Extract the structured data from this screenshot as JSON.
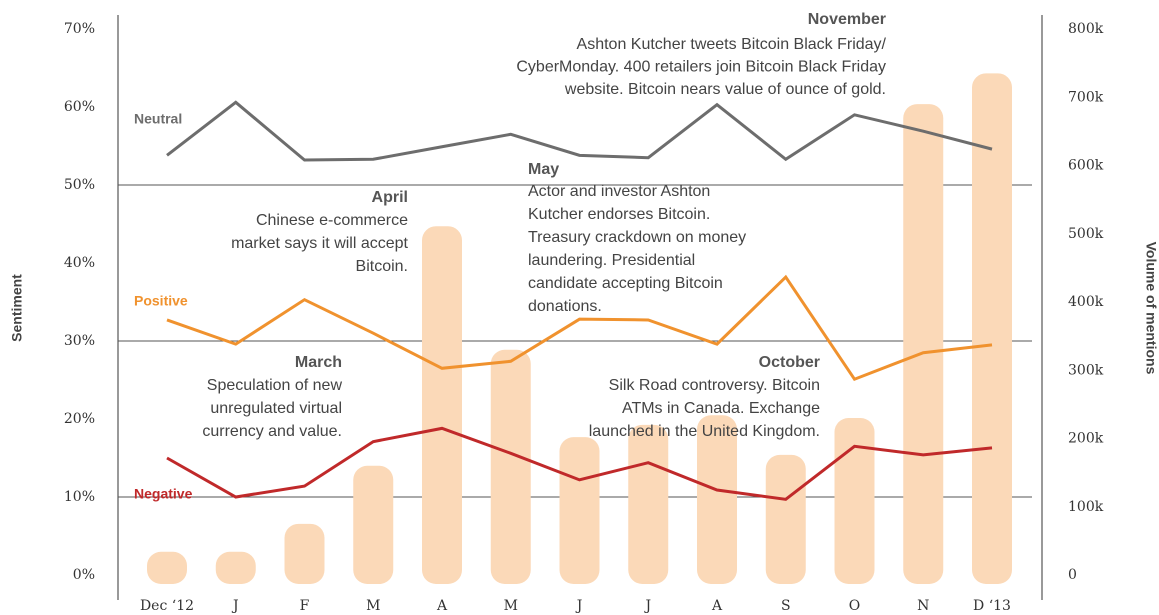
{
  "chart_data": {
    "type": "bar_line",
    "categories": [
      "Dec ‘12",
      "J",
      "F",
      "M",
      "A",
      "M",
      "J",
      "J",
      "A",
      "S",
      "O",
      "N",
      "D ‘13"
    ],
    "ylabel": "Sentiment",
    "y2label": "Volume of mentions",
    "ylim": [
      0,
      70
    ],
    "yticks": [
      {
        "value": 0,
        "label": "0%"
      },
      {
        "value": 10,
        "label": "10%"
      },
      {
        "value": 20,
        "label": "20%"
      },
      {
        "value": 30,
        "label": "30%"
      },
      {
        "value": 40,
        "label": "40%"
      },
      {
        "value": 50,
        "label": "50%"
      },
      {
        "value": 60,
        "label": "60%"
      },
      {
        "value": 70,
        "label": "70%"
      }
    ],
    "y2lim": [
      0,
      800000
    ],
    "y2ticks": [
      0,
      {
        "value": 100000,
        "label": "100k"
      },
      {
        "value": 200000,
        "label": "200k"
      },
      {
        "value": 300000,
        "label": "300k"
      },
      {
        "value": 400000,
        "label": "400k"
      },
      {
        "value": 500000,
        "label": "500k"
      },
      {
        "value": 600000,
        "label": "600k"
      },
      {
        "value": 700000,
        "label": "700k"
      },
      {
        "value": 800000,
        "label": "800k"
      }
    ],
    "grid_lines": [
      10,
      30,
      50
    ],
    "bars": {
      "color": "#fbd9b8",
      "axis": "y2",
      "values": [
        34000,
        34000,
        75000,
        160000,
        511000,
        330000,
        202000,
        220000,
        234000,
        176000,
        230000,
        690000,
        735000
      ]
    },
    "series": [
      {
        "name": "Neutral",
        "color": "#6d6d6d",
        "values": [
          53.8,
          60.6,
          53.2,
          53.3,
          54.9,
          56.5,
          53.8,
          53.5,
          60.3,
          53.3,
          59.0,
          56.9,
          54.6
        ]
      },
      {
        "name": "Positive",
        "color": "#f0922e",
        "values": [
          32.7,
          29.6,
          35.3,
          31.0,
          26.5,
          27.4,
          32.8,
          32.7,
          29.6,
          38.2,
          25.1,
          28.5,
          29.5
        ]
      },
      {
        "name": "Negative",
        "color": "#c0292a",
        "values": [
          15.0,
          10.0,
          11.4,
          17.1,
          18.8,
          15.6,
          12.2,
          14.4,
          10.9,
          9.7,
          16.5,
          15.4,
          16.3
        ]
      }
    ],
    "annotations": [
      {
        "title": "November",
        "lines": [
          "Ashton Kutcher tweets Bitcoin Black Friday/",
          "CyberMonday. 400 retailers join Bitcoin Black Friday",
          "website. Bitcoin nears value of ounce of gold."
        ]
      },
      {
        "title": "April",
        "lines": [
          "Chinese e-commerce",
          "market says it will accept",
          "Bitcoin."
        ]
      },
      {
        "title": "May",
        "lines": [
          "Actor and investor Ashton",
          "Kutcher endorses Bitcoin.",
          "Treasury crackdown on money",
          "laundering. Presidential",
          "candidate accepting Bitcoin",
          "donations."
        ]
      },
      {
        "title": "March",
        "lines": [
          "Speculation of new",
          "unregulated virtual",
          "currency and value."
        ]
      },
      {
        "title": "October",
        "lines": [
          "Silk Road controversy. Bitcoin",
          "ATMs in Canada. Exchange",
          "launched in the United Kingdom."
        ]
      }
    ]
  }
}
